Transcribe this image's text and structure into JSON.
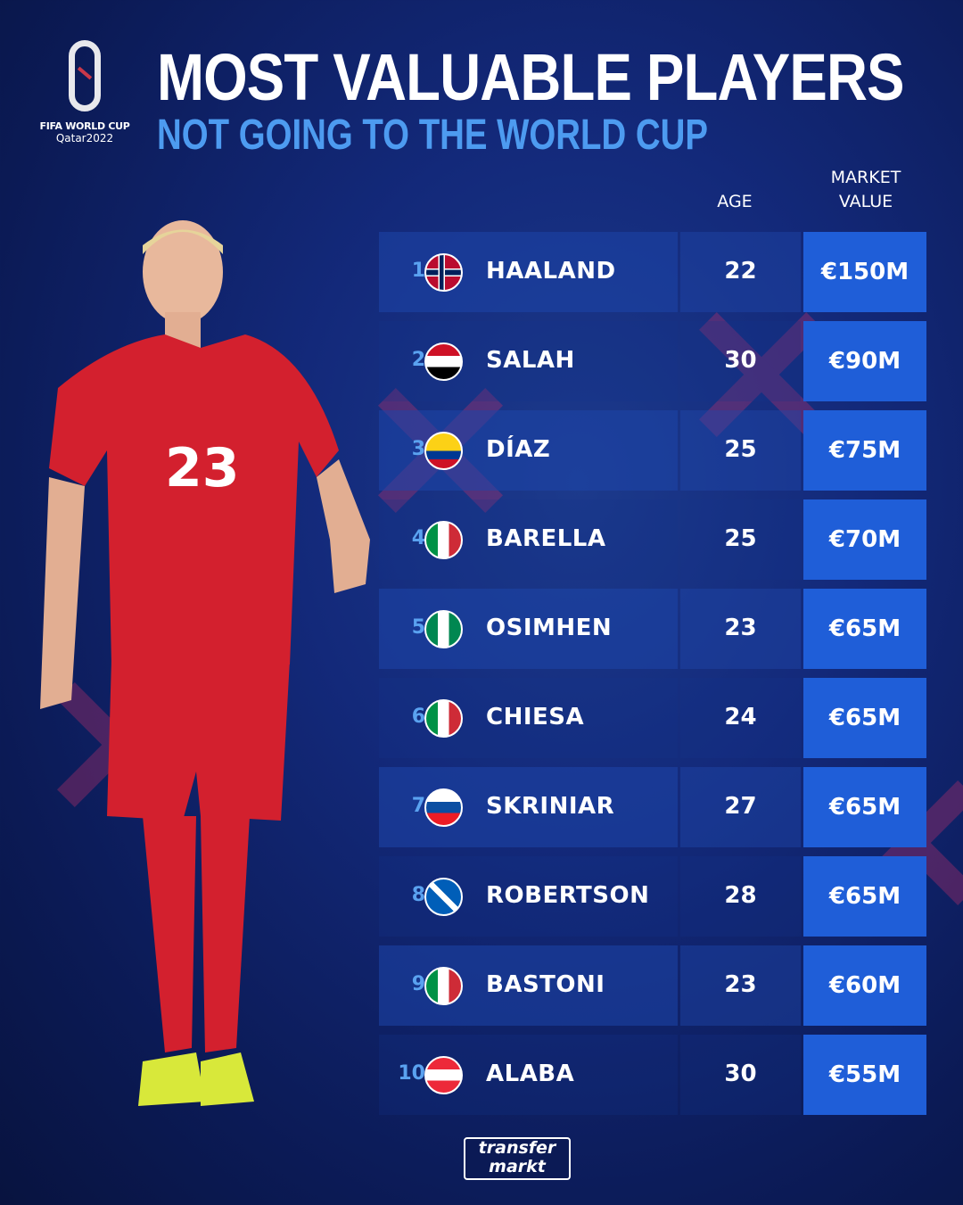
{
  "logo": {
    "line1": "FIFA WORLD CUP",
    "line2": "Qatar2022"
  },
  "title": "MOST VALUABLE PLAYERS",
  "subtitle": "NOT GOING TO THE WORLD CUP",
  "headers": {
    "age": "AGE",
    "market_value_line1": "MARKET",
    "market_value_line2": "VALUE"
  },
  "players": [
    {
      "rank": "1",
      "flag": "norway",
      "name": "HAALAND",
      "age": "22",
      "value": "€150M"
    },
    {
      "rank": "2",
      "flag": "egypt",
      "name": "SALAH",
      "age": "30",
      "value": "€90M"
    },
    {
      "rank": "3",
      "flag": "colombia",
      "name": "DÍAZ",
      "age": "25",
      "value": "€75M"
    },
    {
      "rank": "4",
      "flag": "italy",
      "name": "BARELLA",
      "age": "25",
      "value": "€70M"
    },
    {
      "rank": "5",
      "flag": "nigeria",
      "name": "OSIMHEN",
      "age": "23",
      "value": "€65M"
    },
    {
      "rank": "6",
      "flag": "italy",
      "name": "CHIESA",
      "age": "24",
      "value": "€65M"
    },
    {
      "rank": "7",
      "flag": "slovakia",
      "name": "SKRINIAR",
      "age": "27",
      "value": "€65M"
    },
    {
      "rank": "8",
      "flag": "scotland",
      "name": "ROBERTSON",
      "age": "28",
      "value": "€65M"
    },
    {
      "rank": "9",
      "flag": "italy",
      "name": "BASTONI",
      "age": "23",
      "value": "€60M"
    },
    {
      "rank": "10",
      "flag": "austria",
      "name": "ALABA",
      "age": "30",
      "value": "€55M"
    }
  ],
  "player_photo": {
    "shirt_number": "23",
    "shirt_color": "#d3202e"
  },
  "brand": {
    "line1": "transfer",
    "line2": "markt"
  },
  "colors": {
    "accent_blue": "#4d9bf0",
    "value_cell": "#1f5ed8",
    "background": "#13297a"
  }
}
